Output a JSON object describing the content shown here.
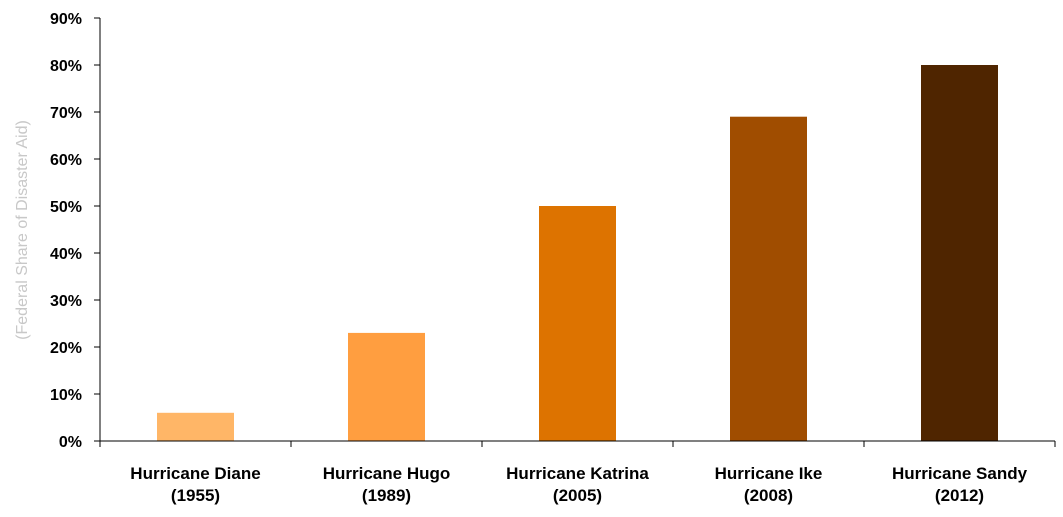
{
  "chart_data": {
    "type": "bar",
    "title": "",
    "xlabel": "",
    "ylabel": "(Federal Share of Disaster Aid)",
    "ylim": [
      0,
      90
    ],
    "y_ticks": [
      0,
      10,
      20,
      30,
      40,
      50,
      60,
      70,
      80,
      90
    ],
    "y_tick_labels": [
      "0%",
      "10%",
      "20%",
      "30%",
      "40%",
      "50%",
      "60%",
      "70%",
      "80%",
      "90%"
    ],
    "grid": false,
    "legend": "none",
    "categories": [
      [
        "Hurricane Diane",
        "(1955)"
      ],
      [
        "Hurricane Hugo",
        "(1989)"
      ],
      [
        "Hurricane Katrina",
        "(2005)"
      ],
      [
        "Hurricane Ike",
        "(2008)"
      ],
      [
        "Hurricane Sandy",
        "(2012)"
      ]
    ],
    "values": [
      6,
      23,
      50,
      69,
      80
    ],
    "unit": "%",
    "colors": [
      "#ffb667",
      "#ff9e40",
      "#dd7300",
      "#a04d00",
      "#4f2500"
    ]
  }
}
